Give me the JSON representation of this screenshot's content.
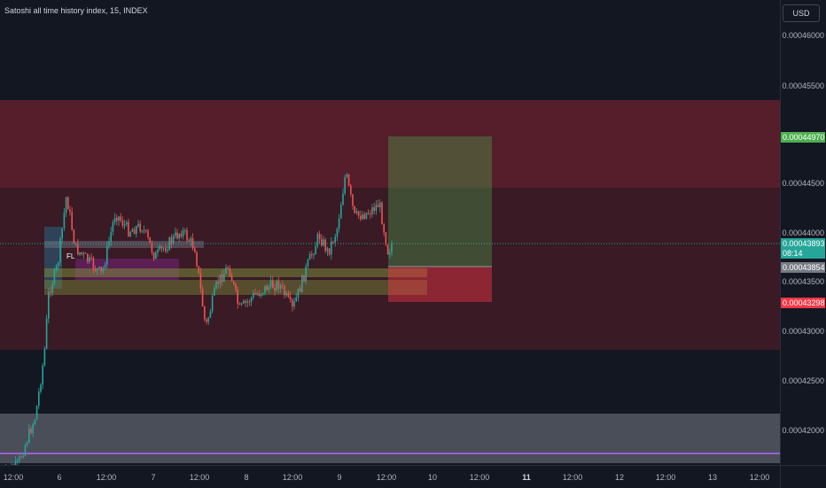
{
  "title": "Satoshi all time history index, 15, INDEX",
  "currency": "USD",
  "price_ticks": [
    "0.00046000",
    "0.00045500",
    "0.00044500",
    "0.00044000",
    "0.00043500",
    "0.00043000",
    "0.00042500",
    "0.00042000"
  ],
  "time_ticks": [
    "12:00",
    "6",
    "12:00",
    "7",
    "12:00",
    "8",
    "12:00",
    "9",
    "12:00",
    "10",
    "12:00",
    "11",
    "12:00",
    "12",
    "12:00",
    "13",
    "12:00"
  ],
  "price_labels": {
    "take_profit": "0.00044970",
    "last_price": "0.00043893",
    "countdown": "08:14",
    "entry": "0.00043854",
    "stop_loss": "0.00043298"
  },
  "drawing_label": "FL",
  "colors": {
    "background": "#131722",
    "zone_red": "#7a2230",
    "profit": "#4caf50",
    "loss": "#f23645",
    "last_price": "#26a69a",
    "candle_up": "#26a69a",
    "candle_down": "#ef5350"
  }
}
